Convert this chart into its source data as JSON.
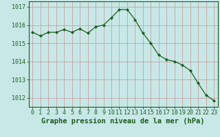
{
  "x": [
    0,
    1,
    2,
    3,
    4,
    5,
    6,
    7,
    8,
    9,
    10,
    11,
    12,
    13,
    14,
    15,
    16,
    17,
    18,
    19,
    20,
    21,
    22,
    23
  ],
  "y": [
    1015.6,
    1015.4,
    1015.6,
    1015.6,
    1015.75,
    1015.6,
    1015.8,
    1015.55,
    1015.9,
    1016.0,
    1016.4,
    1016.85,
    1016.85,
    1016.3,
    1015.55,
    1015.0,
    1014.35,
    1014.1,
    1014.0,
    1013.8,
    1013.5,
    1012.8,
    1012.15,
    1011.85
  ],
  "line_color": "#1a5c1a",
  "marker_color": "#1a5c1a",
  "bg_color": "#c8e8e8",
  "grid_color": "#c8a0a0",
  "axis_label_color": "#1a5c1a",
  "tick_label_color": "#1a5c1a",
  "xlabel": "Graphe pression niveau de la mer (hPa)",
  "ylim": [
    1011.5,
    1017.3
  ],
  "yticks": [
    1012,
    1013,
    1014,
    1015,
    1016,
    1017
  ],
  "xticks": [
    0,
    1,
    2,
    3,
    4,
    5,
    6,
    7,
    8,
    9,
    10,
    11,
    12,
    13,
    14,
    15,
    16,
    17,
    18,
    19,
    20,
    21,
    22,
    23
  ],
  "xlabel_fontsize": 7.5,
  "tick_fontsize": 6.0,
  "figsize": [
    3.2,
    2.0
  ],
  "dpi": 100
}
